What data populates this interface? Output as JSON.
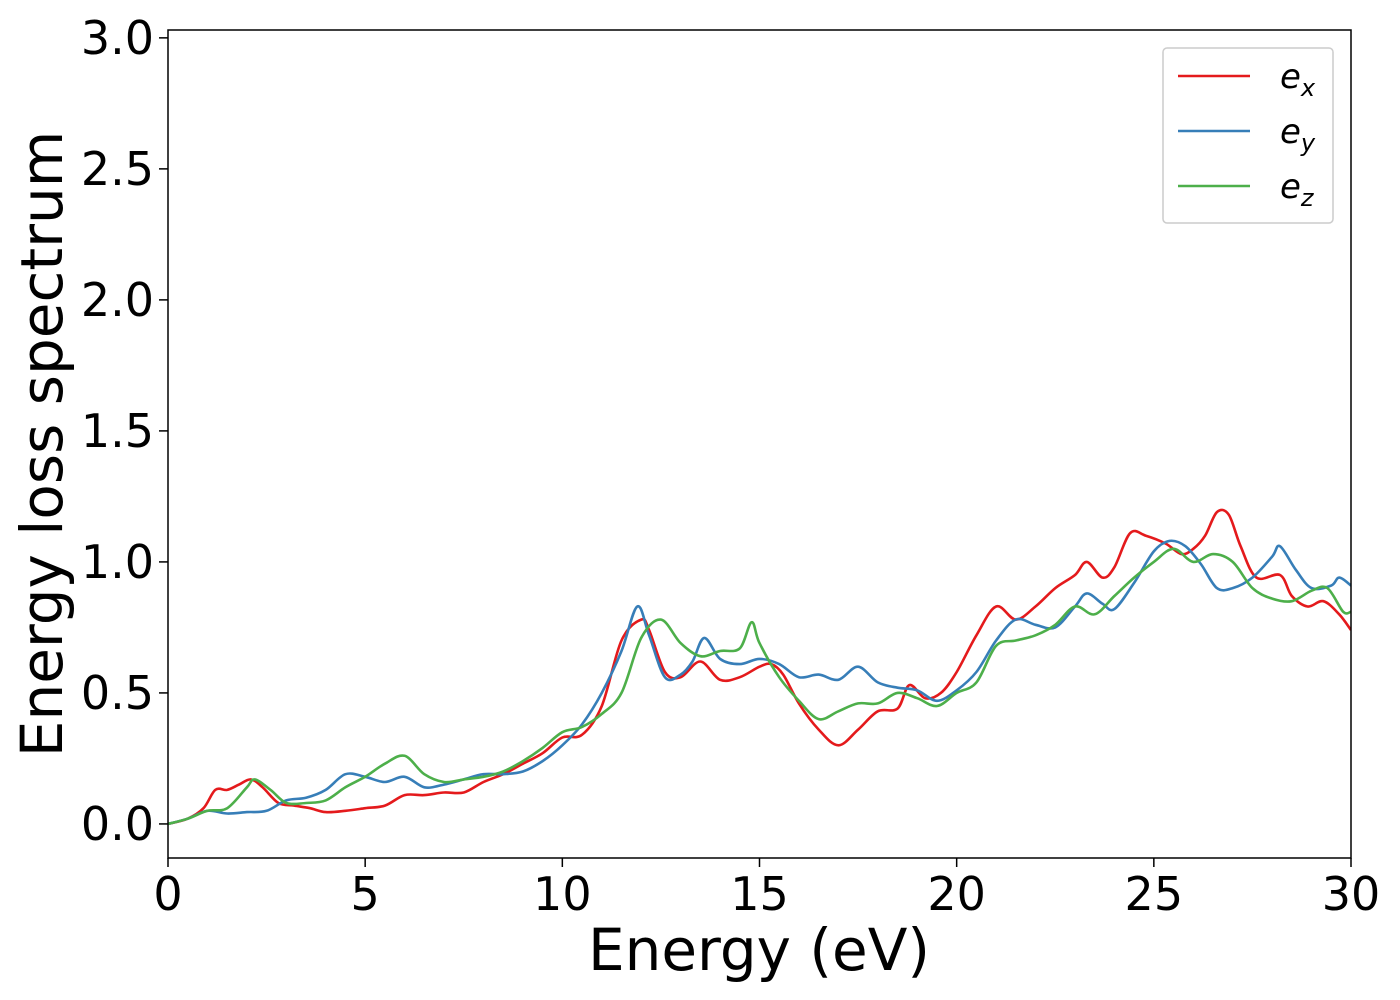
{
  "chart_data": {
    "type": "line",
    "xlabel": "Energy (eV)",
    "ylabel": "Energy loss spectrum",
    "xlim": [
      0,
      30
    ],
    "ylim": [
      -0.13,
      3.03
    ],
    "x_ticks": [
      0,
      5,
      10,
      15,
      20,
      25,
      30
    ],
    "x_tick_labels": [
      "0",
      "5",
      "10",
      "15",
      "20",
      "25",
      "30"
    ],
    "y_ticks": [
      0.0,
      0.5,
      1.0,
      1.5,
      2.0,
      2.5,
      3.0
    ],
    "y_tick_labels": [
      "0.0",
      "0.5",
      "1.0",
      "1.5",
      "2.0",
      "2.5",
      "3.0"
    ],
    "grid": false,
    "legend_position": "top-right",
    "series": [
      {
        "name": "e",
        "subscript": "x",
        "color": "#e41a1c",
        "points": [
          [
            0,
            0
          ],
          [
            0.5,
            0.02
          ],
          [
            0.9,
            0.06
          ],
          [
            1.2,
            0.13
          ],
          [
            1.5,
            0.13
          ],
          [
            1.8,
            0.15
          ],
          [
            2.1,
            0.17
          ],
          [
            2.4,
            0.14
          ],
          [
            2.8,
            0.08
          ],
          [
            3.2,
            0.07
          ],
          [
            3.6,
            0.06
          ],
          [
            4.0,
            0.045
          ],
          [
            4.5,
            0.05
          ],
          [
            5.0,
            0.06
          ],
          [
            5.5,
            0.07
          ],
          [
            6.0,
            0.11
          ],
          [
            6.5,
            0.11
          ],
          [
            7.0,
            0.12
          ],
          [
            7.5,
            0.12
          ],
          [
            8.0,
            0.16
          ],
          [
            8.5,
            0.19
          ],
          [
            9.0,
            0.23
          ],
          [
            9.5,
            0.27
          ],
          [
            10.0,
            0.33
          ],
          [
            10.5,
            0.34
          ],
          [
            11.0,
            0.45
          ],
          [
            11.5,
            0.7
          ],
          [
            12.0,
            0.78
          ],
          [
            12.2,
            0.74
          ],
          [
            12.6,
            0.58
          ],
          [
            13.0,
            0.56
          ],
          [
            13.5,
            0.62
          ],
          [
            14.0,
            0.55
          ],
          [
            14.5,
            0.56
          ],
          [
            15.0,
            0.6
          ],
          [
            15.3,
            0.61
          ],
          [
            15.6,
            0.57
          ],
          [
            16.0,
            0.46
          ],
          [
            16.5,
            0.36
          ],
          [
            17.0,
            0.3
          ],
          [
            17.5,
            0.36
          ],
          [
            18.0,
            0.43
          ],
          [
            18.5,
            0.44
          ],
          [
            18.8,
            0.53
          ],
          [
            19.2,
            0.48
          ],
          [
            19.6,
            0.5
          ],
          [
            20.0,
            0.58
          ],
          [
            20.5,
            0.72
          ],
          [
            21.0,
            0.83
          ],
          [
            21.5,
            0.78
          ],
          [
            22.0,
            0.83
          ],
          [
            22.5,
            0.9
          ],
          [
            23.0,
            0.95
          ],
          [
            23.3,
            1.0
          ],
          [
            23.7,
            0.94
          ],
          [
            24.0,
            0.98
          ],
          [
            24.4,
            1.11
          ],
          [
            24.8,
            1.1
          ],
          [
            25.3,
            1.07
          ],
          [
            25.7,
            1.03
          ],
          [
            26.0,
            1.05
          ],
          [
            26.3,
            1.1
          ],
          [
            26.6,
            1.19
          ],
          [
            26.9,
            1.18
          ],
          [
            27.2,
            1.06
          ],
          [
            27.6,
            0.94
          ],
          [
            28.2,
            0.95
          ],
          [
            28.5,
            0.87
          ],
          [
            28.9,
            0.83
          ],
          [
            29.3,
            0.85
          ],
          [
            29.7,
            0.8
          ],
          [
            30.0,
            0.74
          ]
        ]
      },
      {
        "name": "e",
        "subscript": "y",
        "color": "#377eb8",
        "points": [
          [
            0,
            0
          ],
          [
            0.5,
            0.02
          ],
          [
            1.0,
            0.05
          ],
          [
            1.5,
            0.04
          ],
          [
            2.0,
            0.045
          ],
          [
            2.5,
            0.05
          ],
          [
            3.0,
            0.09
          ],
          [
            3.5,
            0.1
          ],
          [
            4.0,
            0.13
          ],
          [
            4.5,
            0.19
          ],
          [
            5.0,
            0.18
          ],
          [
            5.5,
            0.16
          ],
          [
            6.0,
            0.18
          ],
          [
            6.5,
            0.14
          ],
          [
            7.0,
            0.15
          ],
          [
            7.5,
            0.17
          ],
          [
            8.0,
            0.19
          ],
          [
            8.5,
            0.19
          ],
          [
            9.0,
            0.2
          ],
          [
            9.5,
            0.24
          ],
          [
            10.0,
            0.3
          ],
          [
            10.5,
            0.38
          ],
          [
            11.0,
            0.5
          ],
          [
            11.5,
            0.66
          ],
          [
            11.9,
            0.83
          ],
          [
            12.2,
            0.72
          ],
          [
            12.6,
            0.56
          ],
          [
            13.0,
            0.57
          ],
          [
            13.3,
            0.62
          ],
          [
            13.6,
            0.71
          ],
          [
            14.0,
            0.63
          ],
          [
            14.5,
            0.61
          ],
          [
            15.0,
            0.63
          ],
          [
            15.5,
            0.61
          ],
          [
            16.0,
            0.56
          ],
          [
            16.5,
            0.57
          ],
          [
            17.0,
            0.55
          ],
          [
            17.5,
            0.6
          ],
          [
            18.0,
            0.54
          ],
          [
            18.5,
            0.52
          ],
          [
            19.0,
            0.51
          ],
          [
            19.5,
            0.47
          ],
          [
            20.0,
            0.51
          ],
          [
            20.5,
            0.58
          ],
          [
            21.0,
            0.7
          ],
          [
            21.5,
            0.78
          ],
          [
            22.0,
            0.76
          ],
          [
            22.5,
            0.75
          ],
          [
            23.0,
            0.83
          ],
          [
            23.3,
            0.88
          ],
          [
            23.7,
            0.84
          ],
          [
            24.0,
            0.82
          ],
          [
            24.5,
            0.92
          ],
          [
            25.0,
            1.04
          ],
          [
            25.4,
            1.08
          ],
          [
            25.8,
            1.06
          ],
          [
            26.2,
            0.99
          ],
          [
            26.6,
            0.9
          ],
          [
            27.0,
            0.9
          ],
          [
            27.5,
            0.94
          ],
          [
            28.0,
            1.02
          ],
          [
            28.2,
            1.06
          ],
          [
            28.6,
            0.97
          ],
          [
            29.0,
            0.9
          ],
          [
            29.5,
            0.91
          ],
          [
            29.7,
            0.94
          ],
          [
            30.0,
            0.91
          ]
        ]
      },
      {
        "name": "e",
        "subscript": "z",
        "color": "#4daf4a",
        "points": [
          [
            0,
            0
          ],
          [
            0.5,
            0.02
          ],
          [
            1.0,
            0.05
          ],
          [
            1.5,
            0.06
          ],
          [
            2.0,
            0.14
          ],
          [
            2.2,
            0.17
          ],
          [
            2.6,
            0.13
          ],
          [
            3.0,
            0.08
          ],
          [
            3.5,
            0.08
          ],
          [
            4.0,
            0.09
          ],
          [
            4.5,
            0.14
          ],
          [
            5.0,
            0.18
          ],
          [
            5.5,
            0.23
          ],
          [
            6.0,
            0.26
          ],
          [
            6.5,
            0.19
          ],
          [
            7.0,
            0.16
          ],
          [
            7.5,
            0.17
          ],
          [
            8.0,
            0.18
          ],
          [
            8.5,
            0.2
          ],
          [
            9.0,
            0.24
          ],
          [
            9.5,
            0.29
          ],
          [
            10.0,
            0.35
          ],
          [
            10.5,
            0.37
          ],
          [
            11.0,
            0.42
          ],
          [
            11.5,
            0.5
          ],
          [
            12.0,
            0.71
          ],
          [
            12.5,
            0.78
          ],
          [
            13.0,
            0.69
          ],
          [
            13.5,
            0.64
          ],
          [
            14.0,
            0.66
          ],
          [
            14.5,
            0.67
          ],
          [
            14.8,
            0.77
          ],
          [
            15.0,
            0.69
          ],
          [
            15.5,
            0.56
          ],
          [
            16.0,
            0.47
          ],
          [
            16.5,
            0.4
          ],
          [
            17.0,
            0.43
          ],
          [
            17.5,
            0.46
          ],
          [
            18.0,
            0.46
          ],
          [
            18.5,
            0.5
          ],
          [
            19.0,
            0.48
          ],
          [
            19.5,
            0.45
          ],
          [
            20.0,
            0.5
          ],
          [
            20.5,
            0.54
          ],
          [
            21.0,
            0.68
          ],
          [
            21.5,
            0.7
          ],
          [
            22.0,
            0.72
          ],
          [
            22.5,
            0.76
          ],
          [
            23.0,
            0.83
          ],
          [
            23.5,
            0.8
          ],
          [
            24.0,
            0.87
          ],
          [
            24.5,
            0.94
          ],
          [
            25.0,
            1.0
          ],
          [
            25.5,
            1.05
          ],
          [
            26.0,
            1.0
          ],
          [
            26.5,
            1.03
          ],
          [
            27.0,
            1.0
          ],
          [
            27.5,
            0.9
          ],
          [
            28.0,
            0.86
          ],
          [
            28.5,
            0.85
          ],
          [
            29.0,
            0.89
          ],
          [
            29.4,
            0.9
          ],
          [
            29.8,
            0.81
          ],
          [
            30.0,
            0.81
          ]
        ]
      }
    ]
  }
}
